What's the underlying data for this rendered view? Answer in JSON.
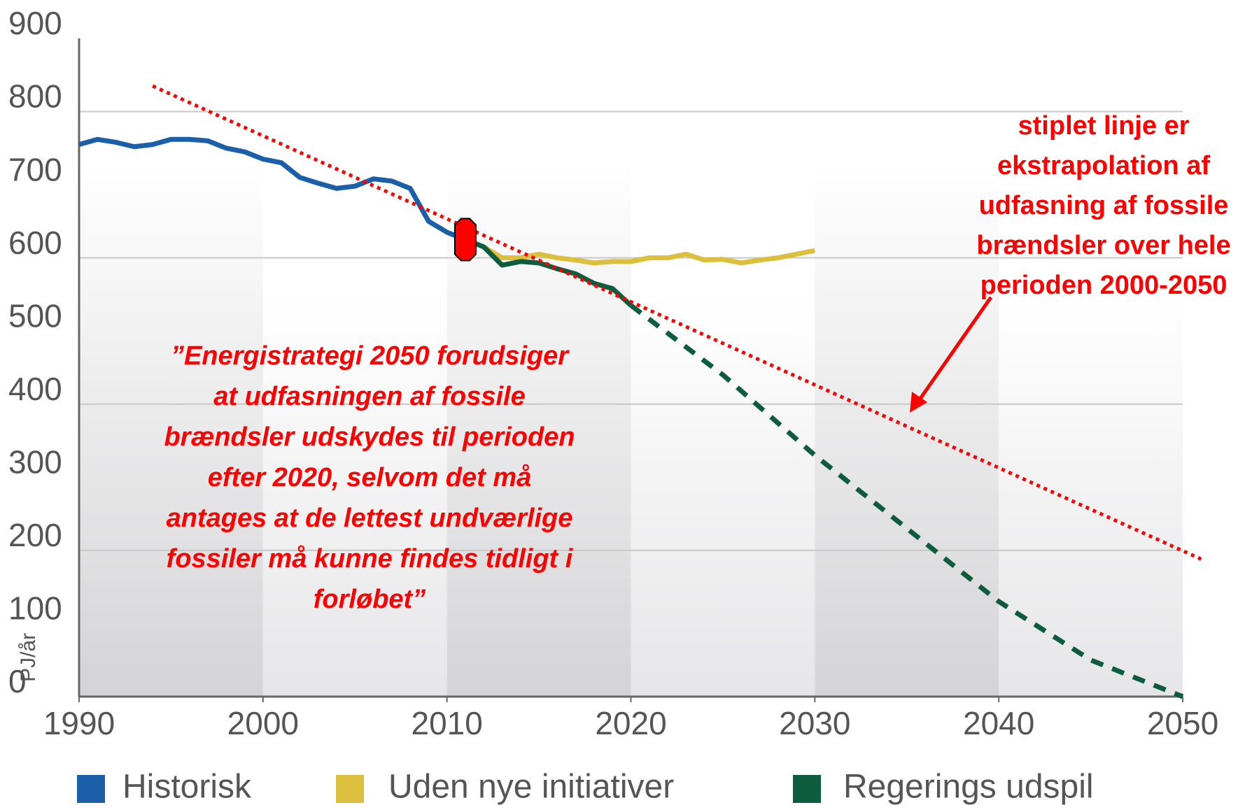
{
  "chart_data": {
    "type": "line",
    "y_axis_label": "PJ/år",
    "xlim": [
      1990,
      2050
    ],
    "xticks": [
      1990,
      2000,
      2010,
      2020,
      2030,
      2040,
      2050
    ],
    "ylim": [
      0,
      900
    ],
    "yticks": [
      0,
      100,
      200,
      300,
      400,
      500,
      600,
      700,
      800,
      900
    ],
    "grid": true,
    "legend": "bottom",
    "series": [
      {
        "name": "Historisk",
        "color": "#1a5fa8",
        "x": [
          1990,
          1991,
          1992,
          1993,
          1994,
          1995,
          1996,
          1997,
          1998,
          1999,
          2000,
          2001,
          2002,
          2003,
          2004,
          2005,
          2006,
          2007,
          2008,
          2009,
          2010,
          2011
        ],
        "values": [
          755,
          762,
          758,
          752,
          755,
          762,
          762,
          760,
          750,
          745,
          735,
          730,
          710,
          702,
          695,
          698,
          708,
          705,
          695,
          650,
          635,
          625
        ]
      },
      {
        "name": "Uden nye initiativer",
        "color": "#dcbf3c",
        "x": [
          2011,
          2012,
          2013,
          2014,
          2015,
          2016,
          2017,
          2018,
          2019,
          2020,
          2021,
          2022,
          2023,
          2024,
          2025,
          2026,
          2027,
          2028,
          2029,
          2030
        ],
        "values": [
          625,
          615,
          600,
          600,
          605,
          600,
          597,
          593,
          595,
          595,
          600,
          600,
          605,
          597,
          598,
          593,
          597,
          600,
          605,
          610
        ]
      },
      {
        "name": "Regerings udspil",
        "color": "#0d5c3e",
        "dashed_after": 2020,
        "x": [
          2011,
          2012,
          2013,
          2014,
          2015,
          2016,
          2017,
          2018,
          2019,
          2020,
          2025,
          2030,
          2035,
          2040,
          2045,
          2050
        ],
        "values": [
          625,
          615,
          590,
          595,
          593,
          585,
          578,
          565,
          558,
          535,
          440,
          330,
          230,
          130,
          50,
          0
        ]
      }
    ],
    "trend_line": {
      "color": "#ff0000",
      "x": [
        1994,
        2051
      ],
      "values": [
        835,
        188
      ]
    },
    "marker": {
      "color": "#ff0000",
      "x": 2011,
      "value": 625
    },
    "annotations": [
      {
        "lines": [
          "”Energistrategi 2050 forudsiger",
          "at udfasningen af fossile",
          "brændsler udskydes til perioden",
          "efter 2020, selvom det må",
          "antages at de lettest undværlige",
          "fossiler må kunne findes tidligt i",
          "forløbet”"
        ]
      },
      {
        "lines": [
          "stiplet linje er",
          "ekstrapolation af",
          "udfasning af fossile",
          "brændsler over hele",
          "perioden 2000-2050"
        ]
      }
    ]
  }
}
